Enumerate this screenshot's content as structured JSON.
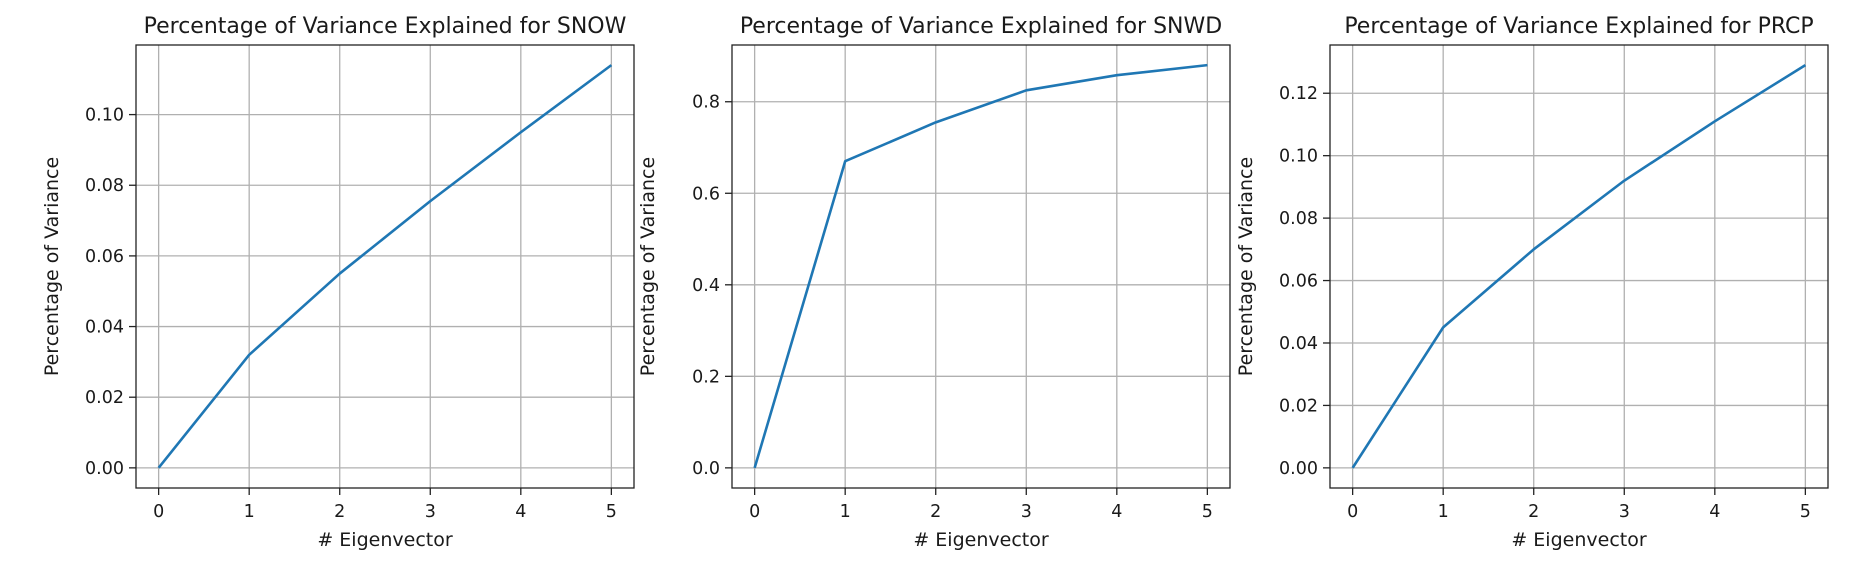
{
  "chart_data": [
    {
      "type": "line",
      "title": "Percentage of Variance Explained for SNOW",
      "xlabel": "# Eigenvector",
      "ylabel": "Percentage of Variance",
      "x": [
        0,
        1,
        2,
        3,
        4,
        5
      ],
      "series": [
        {
          "values": [
            0.0,
            0.032,
            0.055,
            0.0755,
            0.095,
            0.114
          ]
        }
      ],
      "xlim": [
        -0.25,
        5.25
      ],
      "ylim": [
        -0.0057,
        0.1197
      ],
      "xticks": [
        "0",
        "1",
        "2",
        "3",
        "4",
        "5"
      ],
      "yticks": [
        "0.00",
        "0.02",
        "0.04",
        "0.06",
        "0.08",
        "0.10"
      ],
      "grid": true,
      "line_color": "#1f77b4"
    },
    {
      "type": "line",
      "title": "Percentage of Variance Explained for SNWD",
      "xlabel": "# Eigenvector",
      "ylabel": "Percentage of Variance",
      "x": [
        0,
        1,
        2,
        3,
        4,
        5
      ],
      "series": [
        {
          "values": [
            0.0,
            0.67,
            0.755,
            0.825,
            0.858,
            0.88
          ]
        }
      ],
      "xlim": [
        -0.25,
        5.25
      ],
      "ylim": [
        -0.044,
        0.924
      ],
      "xticks": [
        "0",
        "1",
        "2",
        "3",
        "4",
        "5"
      ],
      "yticks": [
        "0.0",
        "0.2",
        "0.4",
        "0.6",
        "0.8"
      ],
      "grid": true,
      "line_color": "#1f77b4"
    },
    {
      "type": "line",
      "title": "Percentage of Variance Explained for PRCP",
      "xlabel": "# Eigenvector",
      "ylabel": "Percentage of Variance",
      "x": [
        0,
        1,
        2,
        3,
        4,
        5
      ],
      "series": [
        {
          "values": [
            0.0,
            0.045,
            0.07,
            0.092,
            0.111,
            0.129
          ]
        }
      ],
      "xlim": [
        -0.25,
        5.25
      ],
      "ylim": [
        -0.00645,
        0.13545
      ],
      "xticks": [
        "0",
        "1",
        "2",
        "3",
        "4",
        "5"
      ],
      "yticks": [
        "0.00",
        "0.02",
        "0.04",
        "0.06",
        "0.08",
        "0.10",
        "0.12"
      ],
      "grid": true,
      "line_color": "#1f77b4"
    }
  ]
}
